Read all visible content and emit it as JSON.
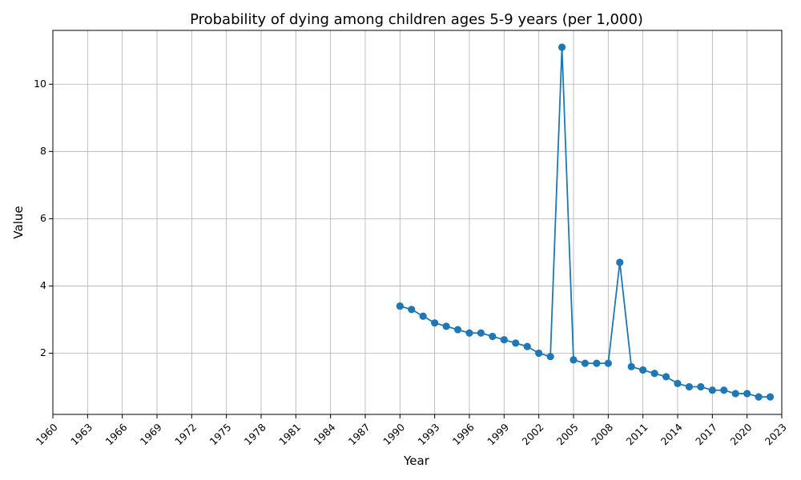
{
  "chart_data": {
    "type": "line",
    "title": "Probability of dying among children ages 5-9 years (per 1,000)",
    "xlabel": "Year",
    "ylabel": "Value",
    "xlim": [
      1960,
      2023
    ],
    "ylim": [
      0.18,
      11.6
    ],
    "x_ticks": [
      1960,
      1963,
      1966,
      1969,
      1972,
      1975,
      1978,
      1981,
      1984,
      1987,
      1990,
      1993,
      1996,
      1999,
      2002,
      2005,
      2008,
      2011,
      2014,
      2017,
      2020,
      2023
    ],
    "y_ticks": [
      2,
      4,
      6,
      8,
      10
    ],
    "grid": true,
    "color": "#1f77b4",
    "marker": "circle",
    "x": [
      1990,
      1991,
      1992,
      1993,
      1994,
      1995,
      1996,
      1997,
      1998,
      1999,
      2000,
      2001,
      2002,
      2003,
      2004,
      2005,
      2006,
      2007,
      2008,
      2009,
      2010,
      2011,
      2012,
      2013,
      2014,
      2015,
      2016,
      2017,
      2018,
      2019,
      2020,
      2021,
      2022
    ],
    "y": [
      3.4,
      3.3,
      3.1,
      2.9,
      2.8,
      2.7,
      2.6,
      2.6,
      2.5,
      2.4,
      2.3,
      2.2,
      2.0,
      1.9,
      11.1,
      1.8,
      1.7,
      1.7,
      1.7,
      4.7,
      1.6,
      1.5,
      1.4,
      1.3,
      1.1,
      1.0,
      1.0,
      0.9,
      0.9,
      0.8,
      0.8,
      0.7,
      0.7
    ]
  }
}
